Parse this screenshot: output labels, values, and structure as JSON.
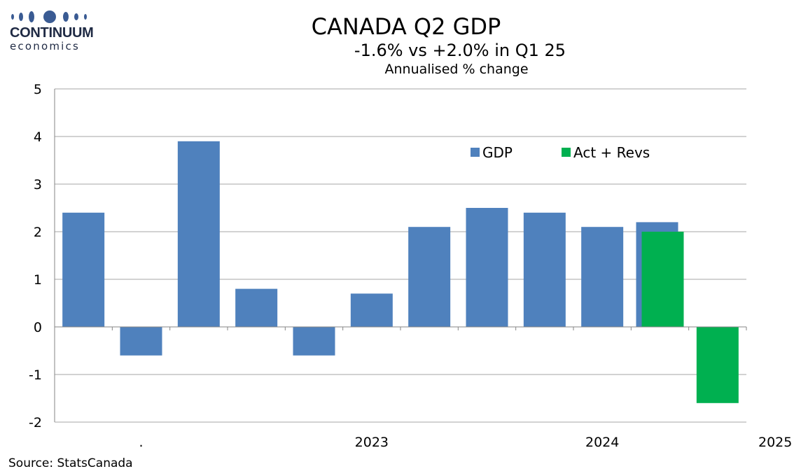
{
  "logo": {
    "brand": "CONTINUUM",
    "sub": "economics",
    "color": "#3a5b93"
  },
  "chart_data": {
    "type": "bar",
    "title": "CANADA Q2 GDP",
    "subtitle": "-1.6% vs +2.0% in Q1 25",
    "subsubtitle": "Annualised % change",
    "xlabel": "",
    "ylabel": "",
    "ylim": [
      -2,
      5
    ],
    "yticks": [
      -2,
      -1,
      0,
      1,
      2,
      3,
      4,
      5
    ],
    "grid": true,
    "legend_position": "top-right",
    "x_tick_labels": [
      {
        "label": ".",
        "at_category": 1.5
      },
      {
        "label": "2023",
        "at_category": 5.5
      },
      {
        "label": "2024",
        "at_category": 9.5
      },
      {
        "label": "2025",
        "at_category": 12.5
      }
    ],
    "series": [
      {
        "name": "GDP",
        "color": "#4f81bd",
        "values": [
          2.4,
          -0.6,
          3.9,
          0.8,
          -0.6,
          0.7,
          2.1,
          2.5,
          2.4,
          2.1,
          2.2,
          null
        ]
      },
      {
        "name": "Act + Revs",
        "color": "#00b050",
        "values": [
          null,
          null,
          null,
          null,
          null,
          null,
          null,
          null,
          null,
          null,
          2.0,
          -1.6
        ]
      }
    ]
  },
  "source": "Source: StatsCanada"
}
